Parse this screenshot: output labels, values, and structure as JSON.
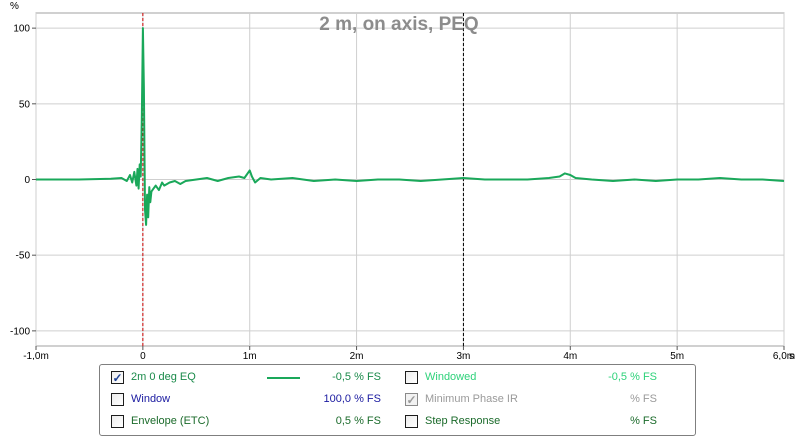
{
  "chart_data": {
    "type": "line",
    "title": "2 m, on axis, PEQ",
    "y_unit_label": "%",
    "x_unit_label": "s",
    "xlim": [
      -1.0,
      6.0
    ],
    "ylim": [
      -110,
      110
    ],
    "x_ticks": [
      {
        "value": -1,
        "label": "-1,0m"
      },
      {
        "value": 0,
        "label": "0"
      },
      {
        "value": 1,
        "label": "1m"
      },
      {
        "value": 2,
        "label": "2m"
      },
      {
        "value": 3,
        "label": "3m"
      },
      {
        "value": 4,
        "label": "4m"
      },
      {
        "value": 5,
        "label": "5m"
      },
      {
        "value": 6,
        "label": "6,0m"
      }
    ],
    "y_ticks": [
      {
        "value": 100,
        "label": "100"
      },
      {
        "value": 50,
        "label": "50"
      },
      {
        "value": 0,
        "label": "0"
      },
      {
        "value": -50,
        "label": "-50"
      },
      {
        "value": -100,
        "label": "-100"
      }
    ],
    "grid": true,
    "markers": [
      {
        "x": 0,
        "color": "#cc0000",
        "style": "dashed"
      },
      {
        "x": 3,
        "color": "#000000",
        "style": "dashed"
      }
    ],
    "series": [
      {
        "name": "2m 0 deg EQ",
        "color": "#1aa85a",
        "x": [
          -1.0,
          -0.6,
          -0.3,
          -0.2,
          -0.15,
          -0.12,
          -0.1,
          -0.08,
          -0.06,
          -0.05,
          -0.04,
          -0.03,
          -0.02,
          -0.01,
          0.0,
          0.01,
          0.02,
          0.03,
          0.04,
          0.05,
          0.06,
          0.07,
          0.08,
          0.1,
          0.12,
          0.15,
          0.18,
          0.2,
          0.25,
          0.3,
          0.35,
          0.4,
          0.5,
          0.6,
          0.7,
          0.8,
          0.9,
          0.95,
          1.0,
          1.02,
          1.05,
          1.1,
          1.2,
          1.4,
          1.6,
          1.8,
          2.0,
          2.2,
          2.4,
          2.6,
          2.8,
          3.0,
          3.2,
          3.4,
          3.6,
          3.8,
          3.9,
          3.95,
          4.0,
          4.05,
          4.2,
          4.4,
          4.6,
          4.8,
          5.0,
          5.2,
          5.4,
          5.6,
          5.8,
          6.0
        ],
        "y": [
          0,
          0,
          0.5,
          1,
          -1,
          3,
          -2,
          5,
          -4,
          7,
          -6,
          10,
          2,
          40,
          100,
          60,
          -20,
          -30,
          -10,
          -25,
          -5,
          -15,
          -8,
          -6,
          -4,
          -7,
          -2,
          -4,
          -2,
          -1,
          -3,
          -1,
          0,
          1,
          -1,
          1,
          2,
          1,
          6,
          2,
          -2,
          1,
          0,
          1,
          -1,
          0,
          -1,
          0,
          0,
          -1,
          0,
          1,
          0,
          0,
          0,
          1,
          2,
          4,
          3,
          1,
          0,
          -1,
          0,
          -1,
          0,
          0,
          1,
          0,
          0,
          -1
        ]
      }
    ]
  },
  "legend": {
    "items": [
      {
        "label": "2m 0 deg EQ",
        "value": "-0,5 % FS",
        "checked": true,
        "enabled": true,
        "color": "#1a8a4a"
      },
      {
        "label": "Window",
        "value": "100,0 % FS",
        "checked": false,
        "enabled": true,
        "color": "#1a1aa0"
      },
      {
        "label": "Envelope (ETC)",
        "value": "0,5 % FS",
        "checked": false,
        "enabled": true,
        "color": "#1a6a2a"
      },
      {
        "label": "Windowed",
        "value": "-0,5 % FS",
        "checked": false,
        "enabled": true,
        "color": "#2ed27a"
      },
      {
        "label": "Minimum Phase IR",
        "value": "% FS",
        "checked": true,
        "enabled": false,
        "color": "#9a9a9a"
      },
      {
        "label": "Step Response",
        "value": "% FS",
        "checked": false,
        "enabled": true,
        "color": "#1a6a2a"
      }
    ],
    "check_glyph": "✓"
  }
}
